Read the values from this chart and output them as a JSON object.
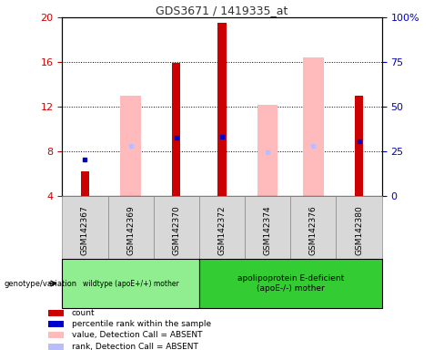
{
  "title": "GDS3671 / 1419335_at",
  "samples": [
    "GSM142367",
    "GSM142369",
    "GSM142370",
    "GSM142372",
    "GSM142374",
    "GSM142376",
    "GSM142380"
  ],
  "ylim_left": [
    4,
    20
  ],
  "ylim_right": [
    0,
    100
  ],
  "yticks_left": [
    4,
    8,
    12,
    16,
    20
  ],
  "yticks_right": [
    0,
    25,
    50,
    75,
    100
  ],
  "yticklabels_right": [
    "0",
    "25",
    "50",
    "75",
    "100%"
  ],
  "red_bars": [
    6.2,
    0,
    15.9,
    19.5,
    0,
    0,
    13.0
  ],
  "pink_bars": [
    0,
    13.0,
    0,
    0,
    12.2,
    16.4,
    0
  ],
  "blue_squares": [
    7.3,
    0,
    9.2,
    9.3,
    0,
    0,
    8.9
  ],
  "lightblue_squares": [
    0,
    8.5,
    0,
    0,
    7.9,
    8.5,
    0
  ],
  "wildtype_label": "wildtype (apoE+/+) mother",
  "apoe_label": "apolipoprotein E-deficient\n(apoE-/-) mother",
  "genotype_label": "genotype/variation",
  "legend_items": [
    {
      "color": "#cc0000",
      "label": "count"
    },
    {
      "color": "#0000cc",
      "label": "percentile rank within the sample"
    },
    {
      "color": "#ffbbbb",
      "label": "value, Detection Call = ABSENT"
    },
    {
      "color": "#bbbbff",
      "label": "rank, Detection Call = ABSENT"
    }
  ],
  "title_color": "#333333",
  "left_axis_color": "#cc0000",
  "right_axis_color": "#0000cc",
  "wildtype_bg": "#90ee90",
  "apoe_bg": "#33cc33"
}
